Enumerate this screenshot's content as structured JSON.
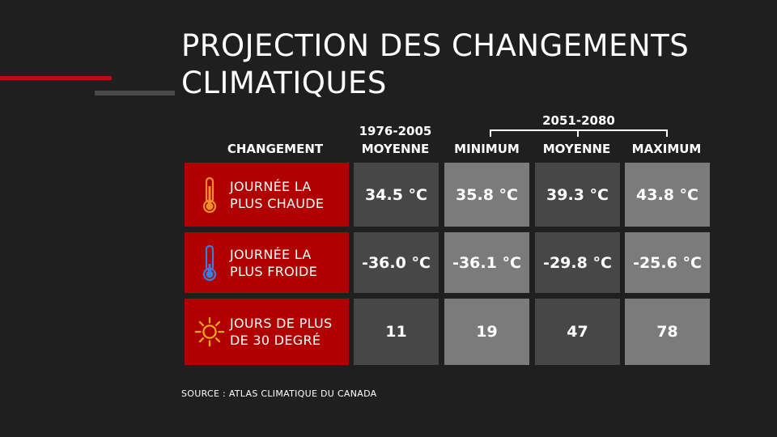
{
  "title": {
    "line1": "PROJECTION DES CHANGEMENTS",
    "line2": "CLIMATIQUES"
  },
  "headers": {
    "changement": "CHANGEMENT",
    "baseline_period": "1976-2005",
    "baseline_mean": "MOYENNE",
    "future_period": "2051-2080",
    "minimum": "MINIMUM",
    "moyenne": "MOYENNE",
    "maximum": "MAXIMUM"
  },
  "rows": [
    {
      "label1": "JOURNÉE LA",
      "label2": "PLUS CHAUDE",
      "icon": "thermometer-hot-icon",
      "values": [
        "34.5 °C",
        "35.8 °C",
        "39.3 °C",
        "43.8 °C"
      ]
    },
    {
      "label1": "JOURNÉE LA",
      "label2": "PLUS FROIDE",
      "icon": "thermometer-cold-icon",
      "values": [
        "-36.0 °C",
        "-36.1 °C",
        "-29.8 °C",
        "-25.6 °C"
      ]
    },
    {
      "label1": "JOURS DE PLUS",
      "label2": "DE 30 DEGRÉ",
      "icon": "sun-icon",
      "values": [
        "11",
        "19",
        "47",
        "78"
      ]
    }
  ],
  "source": "SOURCE : ATLAS CLIMATIQUE DU CANADA",
  "colors": {
    "background": "#1f1f1f",
    "accent_red": "#b00000",
    "cell_dark": "#474747",
    "cell_light": "#7b7b7b",
    "hot_icon": "#f0902a",
    "cold_icon": "#3a7ee0",
    "sun_icon": "#f5a623"
  }
}
